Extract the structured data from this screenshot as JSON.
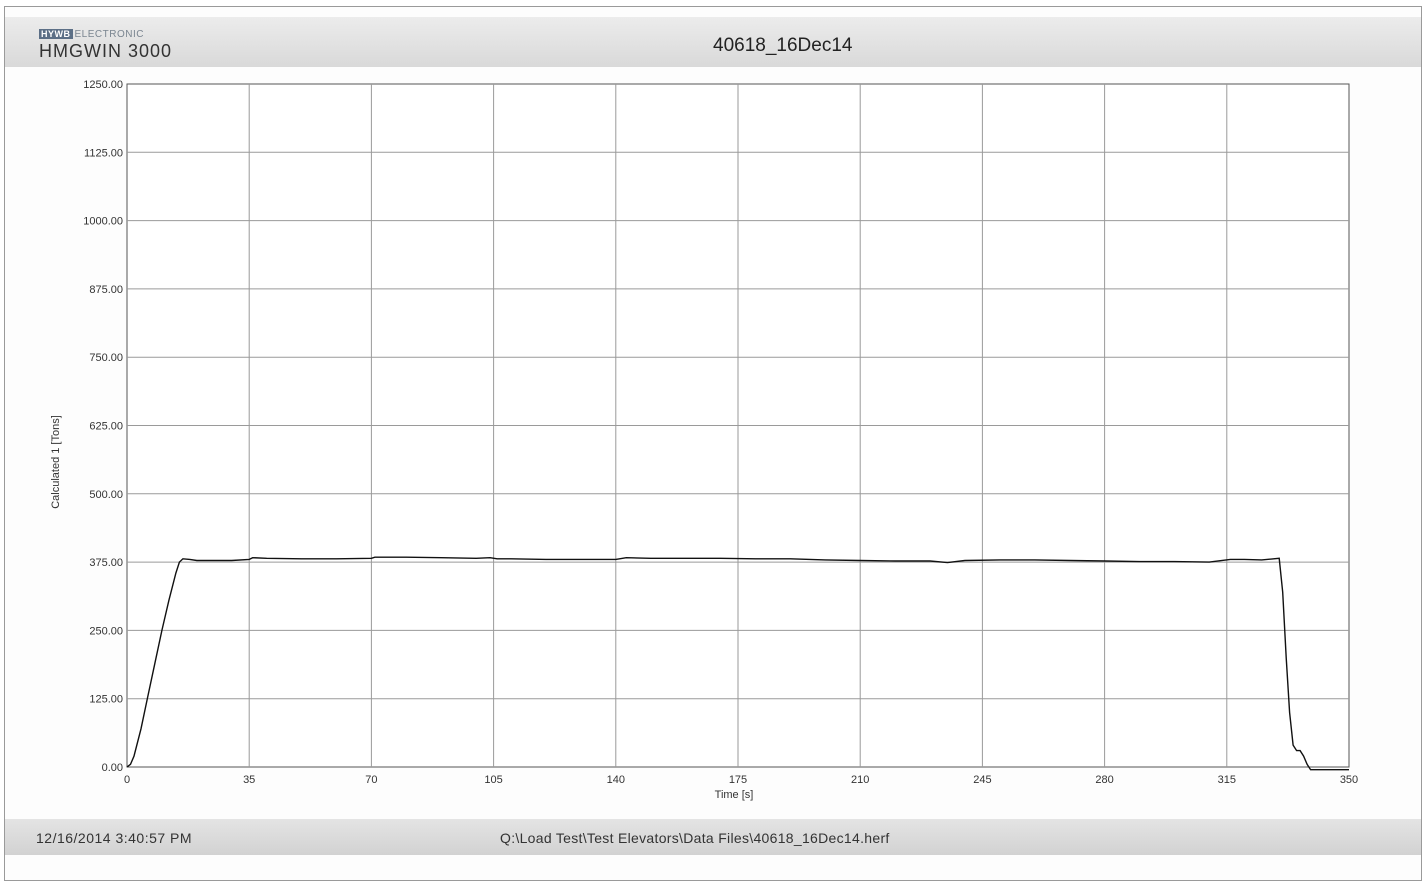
{
  "header": {
    "brand_top": "ELECTRONIC",
    "brand_logo": "HYWB",
    "brand_name": "HMGWIN 3000",
    "title": "40618_16Dec14"
  },
  "footer": {
    "timestamp": "12/16/2014 3:40:57 PM",
    "file_path": "Q:\\Load Test\\Test Elevators\\Data Files\\40618_16Dec14.herf"
  },
  "chart_data": {
    "type": "line",
    "title": "40618_16Dec14",
    "xlabel": "Time [s]",
    "ylabel": "Calculated 1 [Tons]",
    "xlim": [
      0,
      350
    ],
    "ylim": [
      0,
      1250
    ],
    "grid": true,
    "x_ticks": [
      "0",
      "35",
      "70",
      "105",
      "140",
      "175",
      "210",
      "245",
      "280",
      "315",
      "350"
    ],
    "y_ticks": [
      "0.00",
      "125.00",
      "250.00",
      "375.00",
      "500.00",
      "625.00",
      "750.00",
      "875.00",
      "1000.00",
      "1125.00",
      "1250.00"
    ],
    "line_color": "#111111",
    "series": [
      {
        "x": [
          0,
          1,
          2,
          4,
          6,
          8,
          10,
          12,
          14,
          15,
          16,
          18,
          20,
          25,
          30,
          35,
          36,
          40,
          50,
          60,
          70,
          71,
          80,
          90,
          100,
          104,
          106,
          110,
          120,
          130,
          140,
          143,
          150,
          160,
          170,
          180,
          190,
          200,
          210,
          220,
          230,
          235,
          240,
          250,
          260,
          270,
          280,
          290,
          300,
          310,
          316,
          320,
          325,
          330,
          331,
          332,
          333,
          334,
          335,
          336,
          337,
          338,
          339,
          340,
          342,
          345,
          350
        ],
        "y": [
          0,
          5,
          20,
          70,
          130,
          190,
          250,
          305,
          355,
          375,
          381,
          380,
          378,
          378,
          378,
          380,
          383,
          382,
          381,
          381,
          382,
          384,
          384,
          383,
          382,
          383,
          381,
          381,
          380,
          380,
          380,
          383,
          382,
          382,
          382,
          381,
          381,
          379,
          378,
          377,
          377,
          374,
          378,
          379,
          379,
          378,
          377,
          376,
          376,
          375,
          380,
          380,
          379,
          382,
          320,
          200,
          100,
          40,
          30,
          30,
          20,
          5,
          -5,
          -5,
          -5,
          -5,
          -5
        ]
      }
    ]
  }
}
